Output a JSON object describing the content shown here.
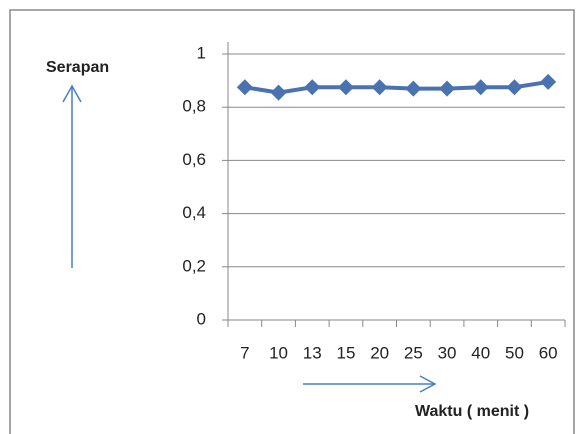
{
  "chart_data": {
    "type": "line",
    "y_label": "Serapan",
    "x_label": "Waktu ( menit )",
    "categories": [
      "7",
      "10",
      "13",
      "15",
      "20",
      "25",
      "30",
      "40",
      "50",
      "60"
    ],
    "series": [
      {
        "name": "Serapan",
        "color": "#4a72b0",
        "values": [
          0.875,
          0.855,
          0.875,
          0.875,
          0.875,
          0.87,
          0.87,
          0.875,
          0.875,
          0.895
        ]
      }
    ],
    "ylim": [
      0,
      1
    ],
    "yticks": [
      0,
      {
        "value": 0.2,
        "label": "0,2"
      },
      {
        "value": 0.4,
        "label": "0,4"
      },
      {
        "value": 0.6,
        "label": "0,6"
      },
      {
        "value": 0.8,
        "label": "0,8"
      },
      1
    ],
    "grid": true
  }
}
